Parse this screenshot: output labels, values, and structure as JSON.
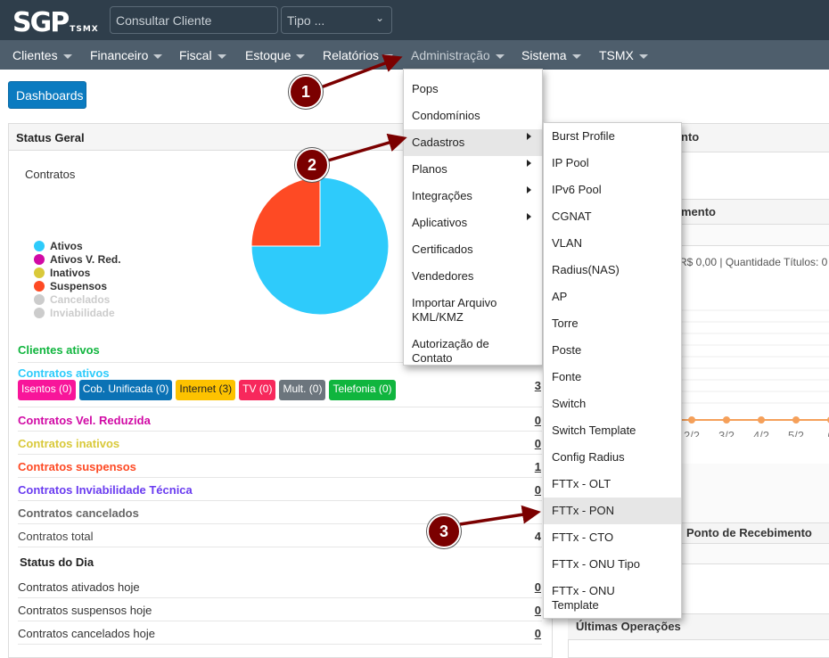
{
  "header": {
    "logo": "SGP",
    "logo_sub": "TSMX",
    "search_placeholder": "Consultar Cliente",
    "type_select": "Tipo ..."
  },
  "nav": [
    {
      "label": "Clientes"
    },
    {
      "label": "Financeiro"
    },
    {
      "label": "Fiscal"
    },
    {
      "label": "Estoque"
    },
    {
      "label": "Relatórios"
    },
    {
      "label": "Administração"
    },
    {
      "label": "Sistema"
    },
    {
      "label": "TSMX"
    }
  ],
  "dashboards_button": "Dashboards",
  "status_geral": {
    "title": "Status Geral",
    "chart_label": "Contratos",
    "legend": [
      {
        "label": "Ativos",
        "color": "#2ecbfb"
      },
      {
        "label": "Ativos V. Red.",
        "color": "#d10aa5"
      },
      {
        "label": "Inativos",
        "color": "#d9c93a"
      },
      {
        "label": "Suspensos",
        "color": "#fe4a24"
      },
      {
        "label": "Cancelados",
        "color": "#cccccc"
      },
      {
        "label": "Inviabilidade",
        "color": "#cccccc"
      }
    ],
    "clientes_ativos": "Clientes ativos",
    "contratos_ativos": "Contratos ativos",
    "contratos_ativos_value": "3",
    "badges": [
      {
        "label": "Isentos (0)",
        "color": "#f8159a"
      },
      {
        "label": "Cob. Unificada (0)",
        "color": "#0b72b5"
      },
      {
        "label": "Internet (3)",
        "color": "#fdc200",
        "text": "#222"
      },
      {
        "label": "TV (0)",
        "color": "#f7285c"
      },
      {
        "label": "Mult. (0)",
        "color": "#6c757d"
      },
      {
        "label": "Telefonia (0)",
        "color": "#10b53e"
      }
    ],
    "rows": [
      {
        "label": "Contratos Vel. Reduzida",
        "value": "0",
        "color": "#d10aa5"
      },
      {
        "label": "Contratos inativos",
        "value": "0",
        "color": "#d9c93a"
      },
      {
        "label": "Contratos suspensos",
        "value": "1",
        "color": "#fe4a24"
      },
      {
        "label": "Contratos Inviabilidade Técnica",
        "value": "0",
        "color": "#6a3cf0"
      },
      {
        "label": "Contratos cancelados",
        "value": "",
        "color": "#666"
      },
      {
        "label": "Contratos total",
        "value": "4",
        "color": "#444"
      }
    ],
    "status_dia": "Status do Dia",
    "day_rows": [
      {
        "label": "Contratos ativados hoje",
        "value": "0"
      },
      {
        "label": "Contratos suspensos hoje",
        "value": "0"
      },
      {
        "label": "Contratos cancelados hoje",
        "value": "0"
      }
    ]
  },
  "chart_data": {
    "type": "pie",
    "title": "Contratos",
    "categories": [
      "Ativos",
      "Suspensos"
    ],
    "values": [
      3,
      1
    ],
    "colors": [
      "#2ecbfb",
      "#fe4a24"
    ]
  },
  "right": {
    "h1": "nto",
    "h2": "mento",
    "summary": "R$ 0,00 | Quantidade Títulos: 0",
    "xticks": [
      "2/2",
      "3/2",
      "4/2",
      "5/2",
      "6"
    ],
    "h3": "Ponto de Recebimento",
    "h4": "Últimas Operações"
  },
  "admin_menu": [
    {
      "label": "Pops"
    },
    {
      "label": "Condomínios"
    },
    {
      "label": "Cadastros",
      "sub": true,
      "active": true
    },
    {
      "label": "Planos",
      "sub": true
    },
    {
      "label": "Integrações",
      "sub": true
    },
    {
      "label": "Aplicativos",
      "sub": true
    },
    {
      "label": "Certificados"
    },
    {
      "label": "Vendedores"
    },
    {
      "label": "Importar Arquivo KML/KMZ"
    },
    {
      "label": "Autorização de Contato"
    }
  ],
  "cadastros_menu": [
    {
      "label": "Burst Profile"
    },
    {
      "label": "IP Pool"
    },
    {
      "label": "IPv6 Pool"
    },
    {
      "label": "CGNAT"
    },
    {
      "label": "VLAN"
    },
    {
      "label": "Radius(NAS)"
    },
    {
      "label": "AP"
    },
    {
      "label": "Torre"
    },
    {
      "label": "Poste"
    },
    {
      "label": "Fonte"
    },
    {
      "label": "Switch"
    },
    {
      "label": "Switch Template"
    },
    {
      "label": "Config Radius"
    },
    {
      "label": "FTTx - OLT"
    },
    {
      "label": "FTTx - PON",
      "highlighted": true
    },
    {
      "label": "FTTx - CTO"
    },
    {
      "label": "FTTx - ONU Tipo"
    },
    {
      "label": "FTTx - ONU Template"
    }
  ],
  "callouts": [
    "1",
    "2",
    "3"
  ]
}
